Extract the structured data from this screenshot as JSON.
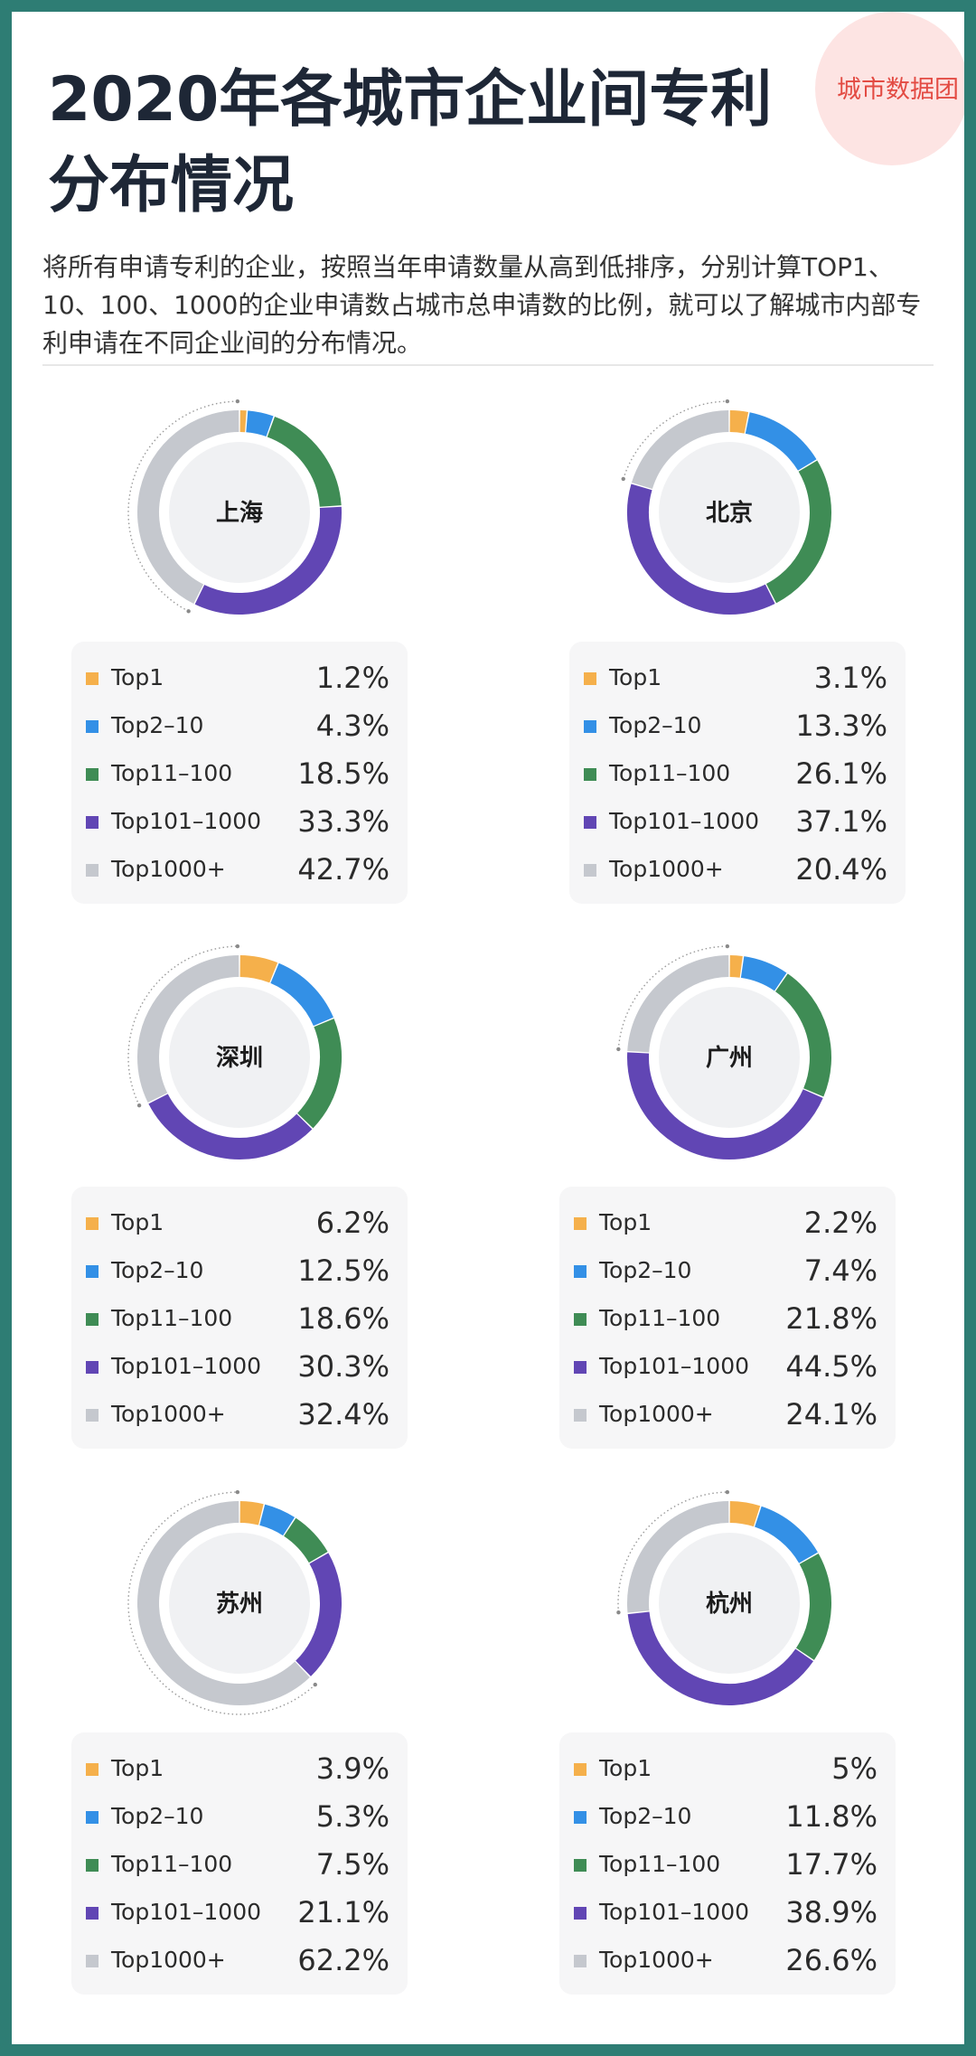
{
  "header": {
    "title": "2020年各城市企业间专利分布情况",
    "intro": "将所有申请专利的企业，按照当年申请数量从高到低排序，分别计算TOP1、10、100、1000的企业申请数占城市总申请数的比例，就可以了解城市内部专利申请在不同企业间的分布情况。",
    "logo": "城市数据团"
  },
  "colors": {
    "Top1": "#f5b04b",
    "Top2-10": "#3390e6",
    "Top11-100": "#3f8c55",
    "Top101-1000": "#6146b4",
    "Top1000+": "#c5c8ce",
    "background": "#2e7d74"
  },
  "chart_data": [
    {
      "type": "pie",
      "title": "上海",
      "categories": [
        "Top1",
        "Top2–10",
        "Top11–100",
        "Top101–1000",
        "Top1000+"
      ],
      "values": [
        1.2,
        4.3,
        18.5,
        33.3,
        42.7
      ],
      "labels": [
        "1.2%",
        "4.3%",
        "18.5%",
        "33.3%",
        "42.7%"
      ]
    },
    {
      "type": "pie",
      "title": "北京",
      "categories": [
        "Top1",
        "Top2–10",
        "Top11–100",
        "Top101–1000",
        "Top1000+"
      ],
      "values": [
        3.1,
        13.3,
        26.1,
        37.1,
        20.4
      ],
      "labels": [
        "3.1%",
        "13.3%",
        "26.1%",
        "37.1%",
        "20.4%"
      ]
    },
    {
      "type": "pie",
      "title": "深圳",
      "categories": [
        "Top1",
        "Top2–10",
        "Top11–100",
        "Top101–1000",
        "Top1000+"
      ],
      "values": [
        6.2,
        12.5,
        18.6,
        30.3,
        32.4
      ],
      "labels": [
        "6.2%",
        "12.5%",
        "18.6%",
        "30.3%",
        "32.4%"
      ]
    },
    {
      "type": "pie",
      "title": "广州",
      "categories": [
        "Top1",
        "Top2–10",
        "Top11–100",
        "Top101–1000",
        "Top1000+"
      ],
      "values": [
        2.2,
        7.4,
        21.8,
        44.5,
        24.1
      ],
      "labels": [
        "2.2%",
        "7.4%",
        "21.8%",
        "44.5%",
        "24.1%"
      ]
    },
    {
      "type": "pie",
      "title": "苏州",
      "categories": [
        "Top1",
        "Top2–10",
        "Top11–100",
        "Top101–1000",
        "Top1000+"
      ],
      "values": [
        3.9,
        5.3,
        7.5,
        21.1,
        62.2
      ],
      "labels": [
        "3.9%",
        "5.3%",
        "7.5%",
        "21.1%",
        "62.2%"
      ]
    },
    {
      "type": "pie",
      "title": "杭州",
      "categories": [
        "Top1",
        "Top2–10",
        "Top11–100",
        "Top101–1000",
        "Top1000+"
      ],
      "values": [
        5,
        11.8,
        17.7,
        38.9,
        26.6
      ],
      "labels": [
        "5%",
        "11.8%",
        "17.7%",
        "38.9%",
        "26.6%"
      ]
    }
  ]
}
